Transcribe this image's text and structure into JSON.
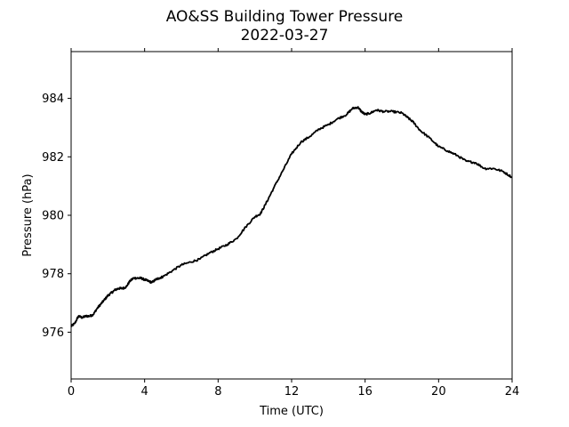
{
  "chart_data": {
    "type": "line",
    "title": "AO&SS Building Tower Pressure",
    "subtitle": "2022-03-27",
    "xlabel": "Time (UTC)",
    "ylabel": "Pressure (hPa)",
    "xlim": [
      0,
      24
    ],
    "ylim": [
      974.4,
      985.6
    ],
    "xticks": [
      0,
      4,
      8,
      12,
      16,
      20,
      24
    ],
    "yticks": [
      976,
      978,
      980,
      982,
      984
    ],
    "grid": false,
    "line_color": "#000000",
    "series": [
      {
        "x": [
          0,
          0.2,
          0.4,
          0.6,
          0.8,
          1.0,
          1.2,
          1.4,
          1.6,
          1.8,
          2.0,
          2.2,
          2.4,
          2.6,
          2.8,
          3.0,
          3.2,
          3.4,
          3.6,
          3.8,
          4.0,
          4.2,
          4.4,
          4.6,
          4.8,
          5.0,
          5.5,
          6.0,
          6.5,
          7.0,
          7.5,
          8.0,
          8.5,
          9.0,
          9.5,
          10.0,
          10.3,
          10.6,
          11.0,
          11.5,
          12.0,
          12.5,
          13.0,
          13.5,
          14.0,
          14.5,
          15.0,
          15.3,
          15.6,
          15.8,
          16.0,
          16.3,
          16.6,
          17.0,
          17.5,
          18.0,
          18.3,
          18.6,
          19.0,
          19.5,
          20.0,
          20.5,
          21.0,
          21.5,
          22.0,
          22.5,
          23.0,
          23.5,
          24.0
        ],
        "y": [
          976.2,
          976.3,
          976.55,
          976.5,
          976.55,
          976.55,
          976.6,
          976.8,
          976.95,
          977.1,
          977.25,
          977.35,
          977.45,
          977.5,
          977.5,
          977.55,
          977.75,
          977.85,
          977.85,
          977.85,
          977.8,
          977.75,
          977.7,
          977.8,
          977.85,
          977.9,
          978.1,
          978.3,
          978.4,
          978.5,
          978.7,
          978.85,
          979.0,
          979.2,
          979.6,
          979.95,
          980.05,
          980.4,
          980.9,
          981.5,
          982.1,
          982.5,
          982.7,
          982.95,
          983.1,
          983.3,
          983.45,
          983.65,
          983.7,
          983.55,
          983.45,
          983.5,
          983.6,
          983.55,
          983.55,
          983.5,
          983.35,
          983.2,
          982.9,
          982.65,
          982.35,
          982.2,
          982.05,
          981.85,
          981.8,
          981.6,
          981.6,
          981.5,
          981.3
        ]
      }
    ]
  }
}
